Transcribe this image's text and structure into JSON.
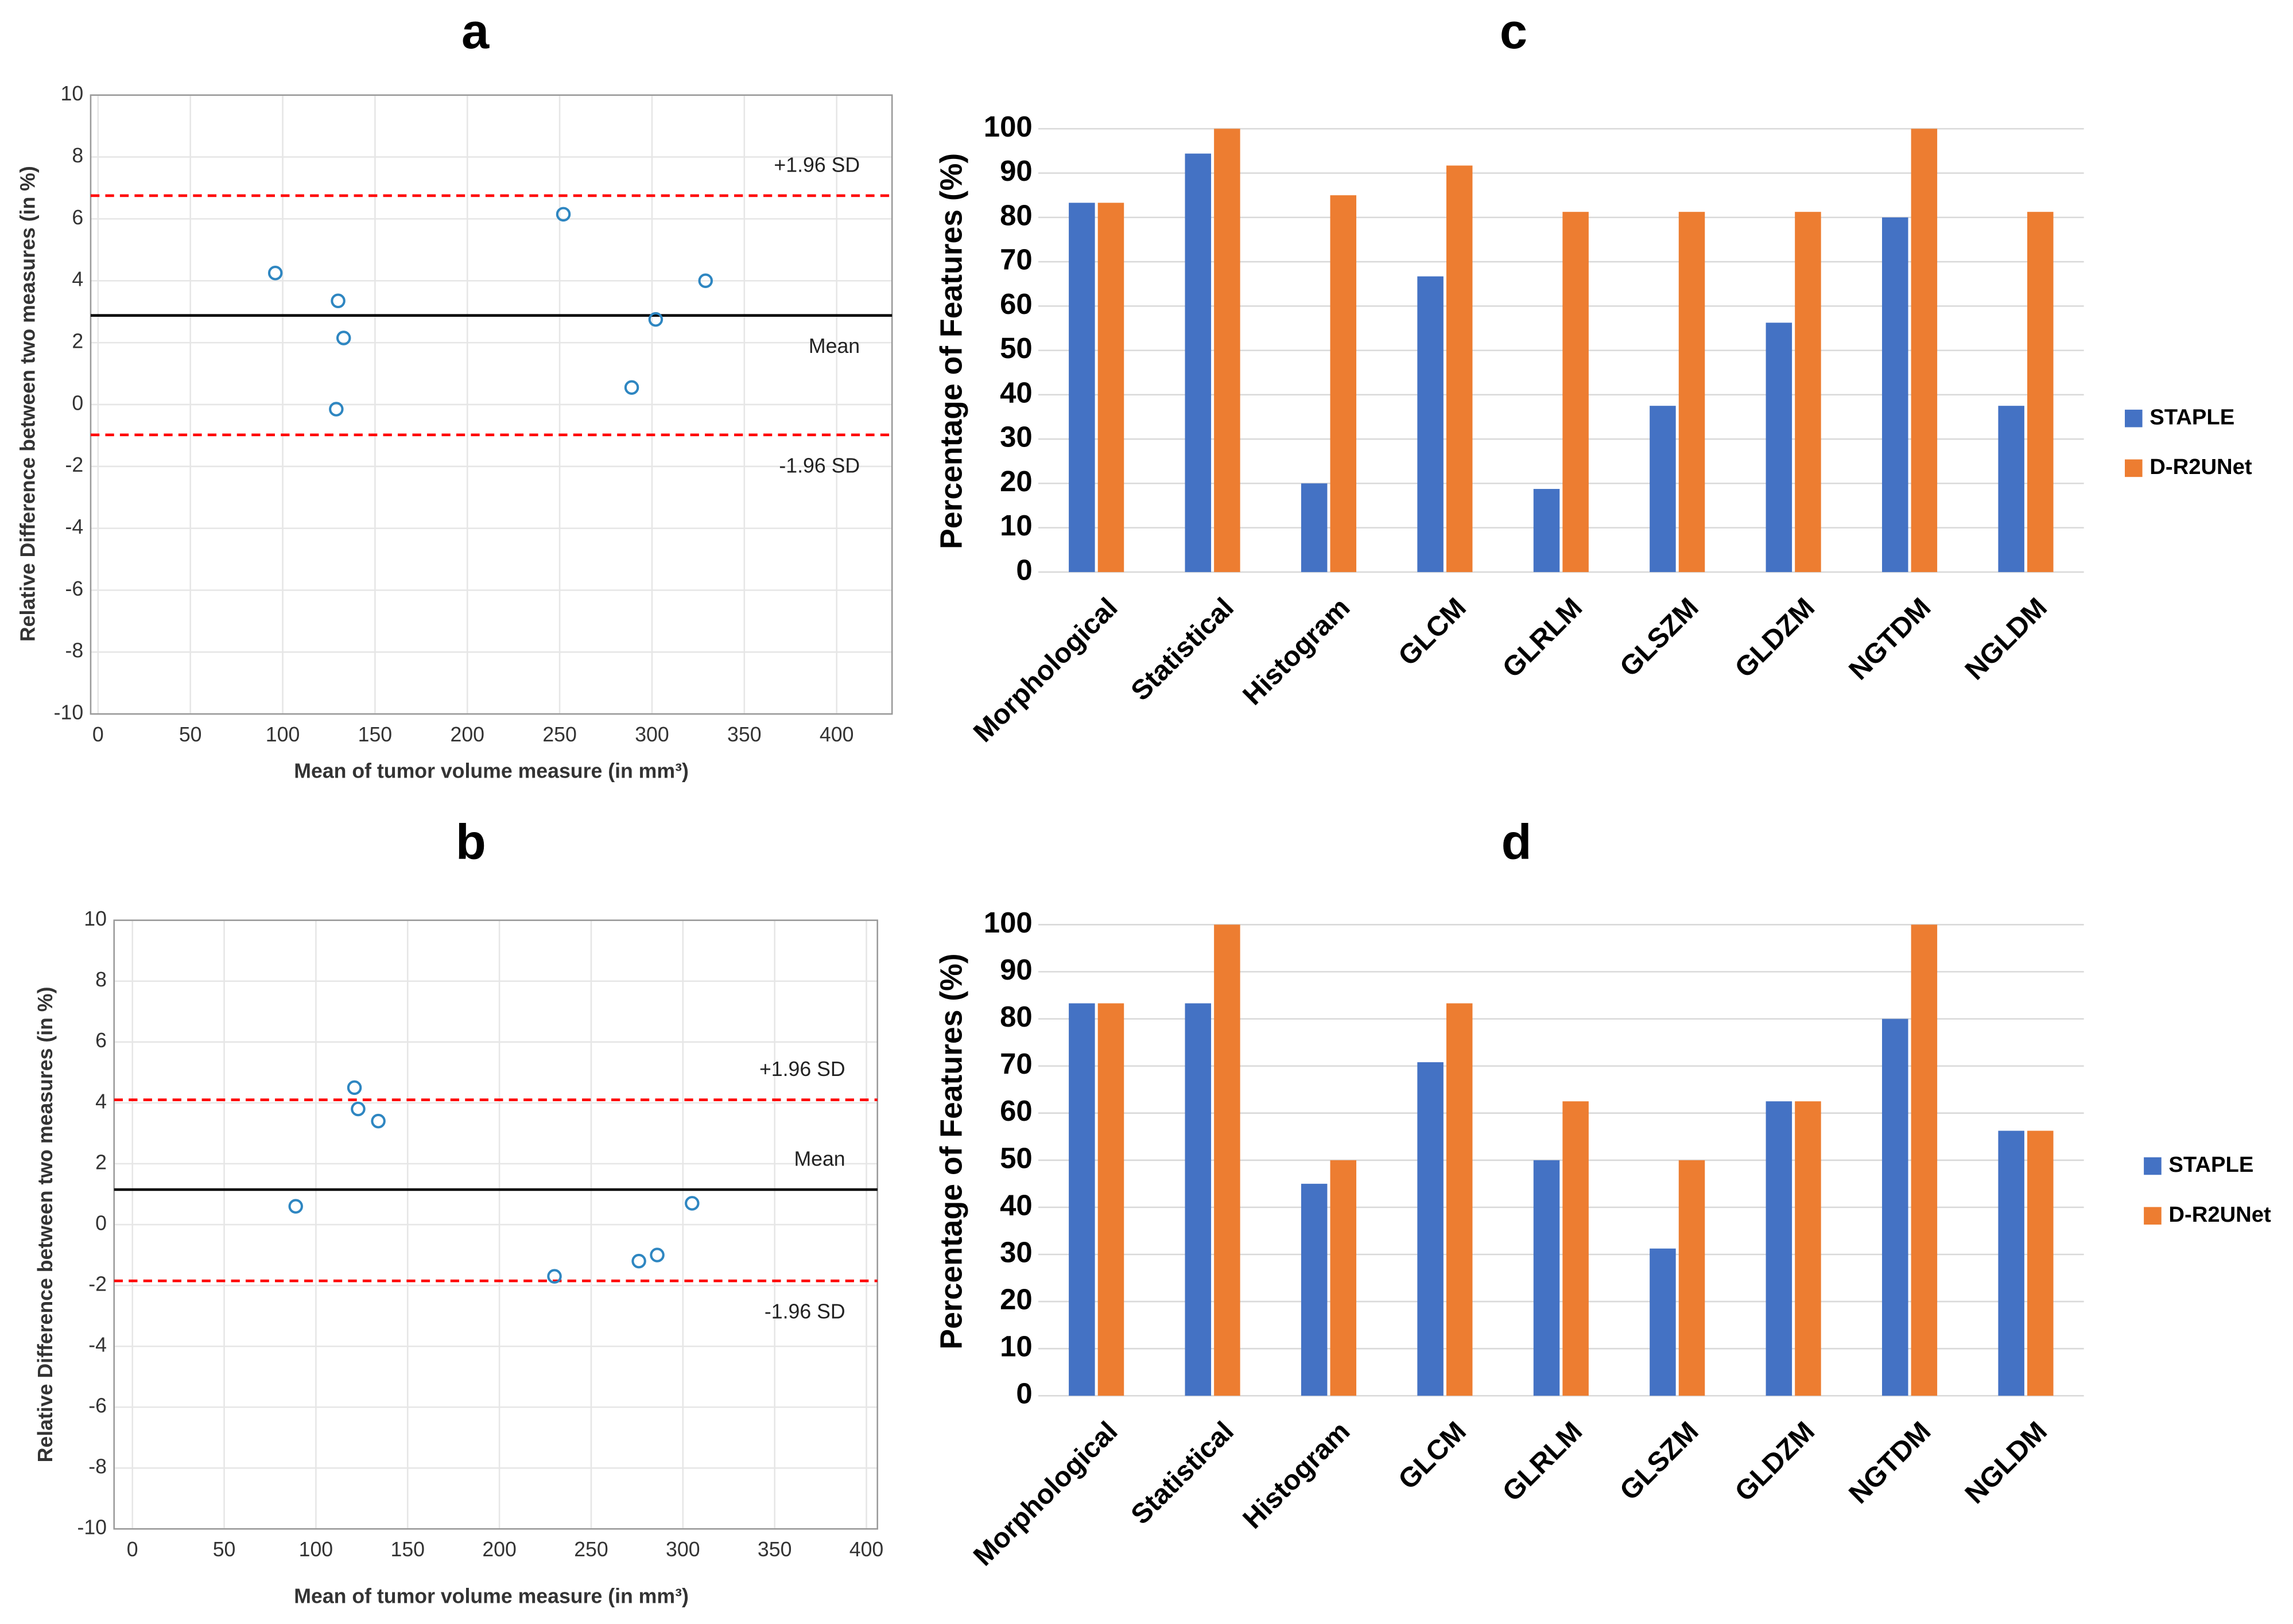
{
  "chart_data": [
    {
      "type": "scatter",
      "title": "a",
      "xlabel": "Mean of tumor volume measure (in mm³)",
      "ylabel": "Relative Difference between two measures (in %)",
      "x": [
        96,
        130,
        133,
        129,
        252,
        302,
        289,
        329
      ],
      "values": [
        4.25,
        3.35,
        2.15,
        -0.15,
        6.15,
        2.75,
        0.55,
        4.0
      ],
      "color": "#2e86c1",
      "xlim": [
        -4,
        430
      ],
      "xticks": [
        0,
        50,
        100,
        150,
        200,
        250,
        300,
        350,
        400
      ],
      "ylim": [
        -10,
        10
      ],
      "yticks": [
        -10,
        -8,
        -6,
        -4,
        -2,
        0,
        2,
        4,
        6,
        8,
        10
      ],
      "grid": true,
      "reference_lines": [
        {
          "label": "+1.96 SD",
          "value": 6.75,
          "color": "#ff0000",
          "dashed": true
        },
        {
          "label": "Mean",
          "value": 2.88,
          "color": "#000000",
          "dashed": false
        },
        {
          "label": "-1.96 SD",
          "value": -0.98,
          "color": "#ff0000",
          "dashed": true
        }
      ]
    },
    {
      "type": "scatter",
      "title": "b",
      "xlabel": "Mean of tumor volume measure (in mm³)",
      "ylabel": "Relative Difference between two measures (in %)",
      "x": [
        89,
        121,
        123,
        134,
        230,
        276,
        286,
        305
      ],
      "values": [
        0.6,
        4.5,
        3.8,
        3.4,
        -1.7,
        -1.2,
        -1.0,
        0.7
      ],
      "color": "#2e86c1",
      "xlim": [
        -10,
        406
      ],
      "xticks": [
        0,
        50,
        100,
        150,
        200,
        250,
        300,
        350,
        400
      ],
      "ylim": [
        -10,
        10
      ],
      "yticks": [
        -10,
        -8,
        -6,
        -4,
        -2,
        0,
        2,
        4,
        6,
        8,
        10
      ],
      "grid": true,
      "reference_lines": [
        {
          "label": "+1.96 SD",
          "value": 4.1,
          "color": "#ff0000",
          "dashed": true
        },
        {
          "label": "Mean",
          "value": 1.15,
          "color": "#000000",
          "dashed": false
        },
        {
          "label": "-1.96 SD",
          "value": -1.85,
          "color": "#ff0000",
          "dashed": true
        }
      ]
    },
    {
      "type": "bar",
      "title": "c",
      "ylabel": "Percentage of Features (%)",
      "categories": [
        "Morphological",
        "Statistical",
        "Histogram",
        "GLCM",
        "GLRLM",
        "GLSZM",
        "GLDZM",
        "NGTDM",
        "NGLDM"
      ],
      "series": [
        {
          "name": "STAPLE",
          "color": "#4472c4",
          "values": [
            83.3,
            94.4,
            20,
            66.7,
            18.75,
            37.5,
            56.25,
            80,
            37.5
          ]
        },
        {
          "name": "D-R2UNet",
          "color": "#ed7d31",
          "values": [
            83.3,
            100,
            85,
            91.7,
            81.25,
            81.25,
            81.25,
            100,
            81.25
          ]
        }
      ],
      "ylim": [
        0,
        100
      ],
      "yticks": [
        0,
        10,
        20,
        30,
        40,
        50,
        60,
        70,
        80,
        90,
        100
      ],
      "grid": true,
      "legend": "right"
    },
    {
      "type": "bar",
      "title": "d",
      "ylabel": "Percentage of Features (%)",
      "categories": [
        "Morphological",
        "Statistical",
        "Histogram",
        "GLCM",
        "GLRLM",
        "GLSZM",
        "GLDZM",
        "NGTDM",
        "NGLDM"
      ],
      "series": [
        {
          "name": "STAPLE",
          "color": "#4472c4",
          "values": [
            83.3,
            83.3,
            45,
            70.8,
            50,
            31.25,
            62.5,
            80,
            56.25
          ]
        },
        {
          "name": "D-R2UNet",
          "color": "#ed7d31",
          "values": [
            83.3,
            100,
            50,
            83.3,
            62.5,
            50,
            62.5,
            100,
            56.25
          ]
        }
      ],
      "ylim": [
        0,
        100
      ],
      "yticks": [
        0,
        10,
        20,
        30,
        40,
        50,
        60,
        70,
        80,
        90,
        100
      ],
      "grid": true,
      "legend": "right"
    }
  ]
}
